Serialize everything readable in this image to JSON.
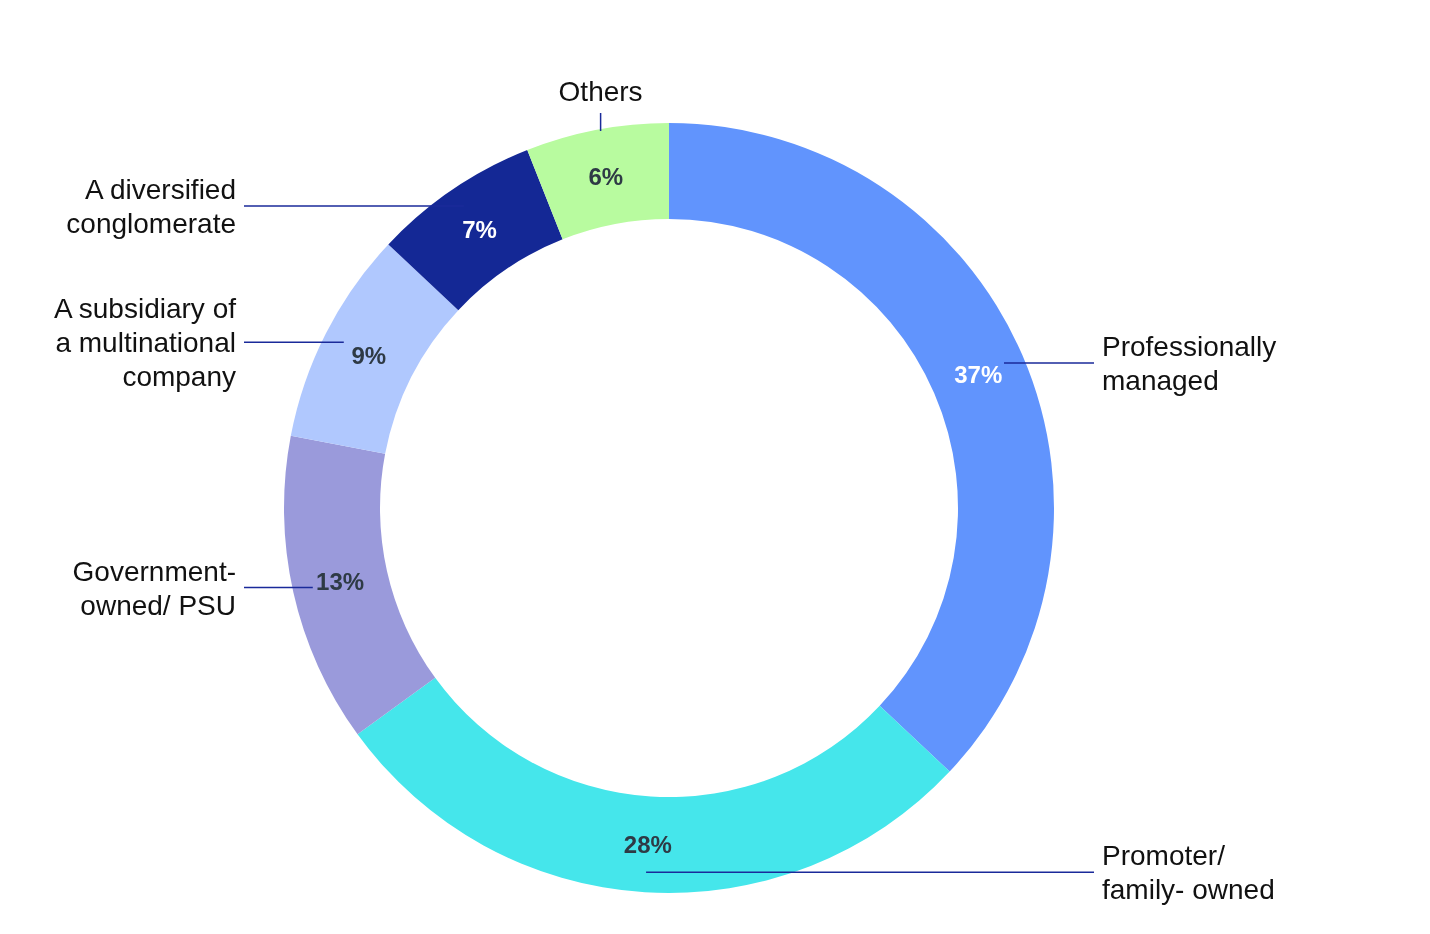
{
  "chart_data": {
    "type": "donut",
    "categories": [
      "Professionally managed",
      "Promoter/ family- owned",
      "Government- owned/ PSU",
      "A subsidiary of a multinational company",
      "A diversified conglomerate",
      "Others"
    ],
    "values": [
      37,
      28,
      13,
      9,
      7,
      6
    ],
    "colors": [
      "#6194fd",
      "#45e6eb",
      "#9a9adb",
      "#b0c8fe",
      "#142895",
      "#b8fb9f"
    ],
    "value_labels": [
      "37%",
      "28%",
      "13%",
      "9%",
      "7%",
      "6%"
    ]
  }
}
